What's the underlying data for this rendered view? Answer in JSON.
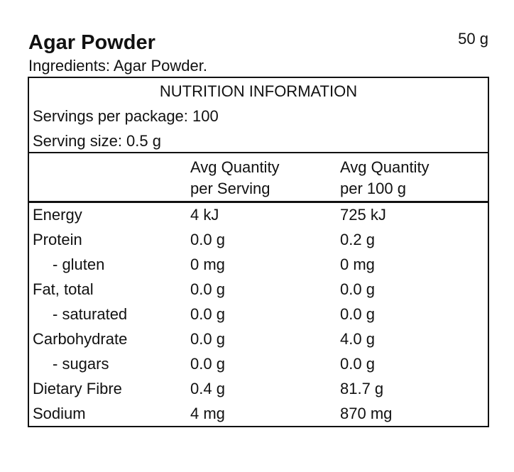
{
  "header": {
    "title": "Agar Powder",
    "weight": "50 g",
    "ingredients": "Ingredients: Agar Powder."
  },
  "panel": {
    "title": "NUTRITION INFORMATION",
    "servings": "Servings per package: 100",
    "serving_size": "Serving size: 0.5 g",
    "columns": [
      [
        "Avg Quantity",
        "per Serving"
      ],
      [
        "Avg Quantity",
        "per 100 g"
      ]
    ],
    "rows": [
      [
        "Energy",
        "4 kJ",
        "725 kJ"
      ],
      [
        "Protein",
        "0.0 g",
        "0.2 g"
      ],
      [
        "- gluten",
        "0 mg",
        "0 mg"
      ],
      [
        "Fat, total",
        "0.0 g",
        "0.0 g"
      ],
      [
        "- saturated",
        "0.0 g",
        "0.0 g"
      ],
      [
        "Carbohydrate",
        "0.0 g",
        "4.0 g"
      ],
      [
        "- sugars",
        "0.0 g",
        "0.0 g"
      ],
      [
        "Dietary Fibre",
        "0.4 g",
        "81.7 g"
      ],
      [
        "Sodium",
        "4 mg",
        "870 mg"
      ]
    ]
  }
}
